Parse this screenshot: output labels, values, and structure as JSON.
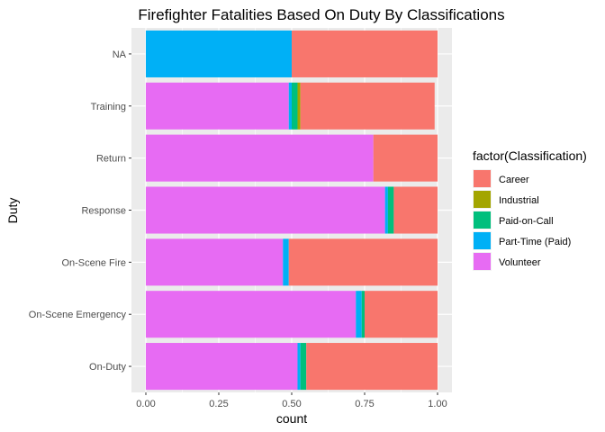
{
  "chart_data": {
    "type": "bar",
    "orientation": "horizontal",
    "stacked": true,
    "title": "Firefighter Fatalities Based On Duty By Classifications",
    "xlabel": "count",
    "ylabel": "Duty",
    "xlim": [
      0,
      1
    ],
    "x_ticks": [
      "0.00",
      "0.25",
      "0.50",
      "0.75",
      "1.00"
    ],
    "x_tick_values": [
      0,
      0.25,
      0.5,
      0.75,
      1
    ],
    "categories": [
      "NA",
      "Training",
      "Return",
      "Response",
      "On-Scene Fire",
      "On-Scene Emergency",
      "On-Duty"
    ],
    "legend_title": "factor(Classification)",
    "legend_position": "right",
    "grid": true,
    "stack_order": [
      "Volunteer",
      "Part-Time (Paid)",
      "Paid-on-Call",
      "Industrial",
      "Career"
    ],
    "series": [
      {
        "name": "Career",
        "color": "#F8766D",
        "values": [
          0.5,
          0.46,
          0.22,
          0.15,
          0.51,
          0.25,
          0.45
        ]
      },
      {
        "name": "Industrial",
        "color": "#A3A500",
        "values": [
          0.0,
          0.01,
          0.0,
          0.0,
          0.0,
          0.0,
          0.0
        ]
      },
      {
        "name": "Paid-on-Call",
        "color": "#00BF7D",
        "values": [
          0.0,
          0.02,
          0.0,
          0.02,
          0.0,
          0.01,
          0.02
        ]
      },
      {
        "name": "Part-Time (Paid)",
        "color": "#00B0F6",
        "values": [
          0.5,
          0.01,
          0.0,
          0.01,
          0.02,
          0.02,
          0.01
        ]
      },
      {
        "name": "Volunteer",
        "color": "#E76BF3",
        "values": [
          0.0,
          0.49,
          0.78,
          0.82,
          0.47,
          0.72,
          0.52
        ]
      }
    ]
  }
}
